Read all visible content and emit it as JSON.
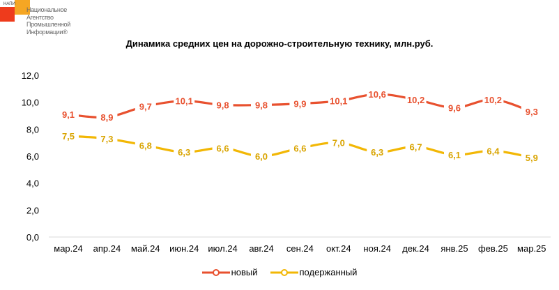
{
  "logo": {
    "small": "НАПИ",
    "lines": [
      "Национальное",
      "Агентство",
      "Промышленной",
      "Информации®"
    ]
  },
  "chart_data": {
    "type": "line",
    "title": "Динамика средних цен на дорожно-строительную технику, млн.руб.",
    "categories": [
      "мар.24",
      "апр.24",
      "май.24",
      "июн.24",
      "июл.24",
      "авг.24",
      "сен.24",
      "окт.24",
      "ноя.24",
      "дек.24",
      "янв.25",
      "фев.25",
      "мар.25"
    ],
    "series": [
      {
        "name": "новый",
        "color": "#E8512F",
        "label_color": "#E8512F",
        "values": [
          9.1,
          8.9,
          9.7,
          10.1,
          9.8,
          9.8,
          9.9,
          10.1,
          10.6,
          10.2,
          9.6,
          10.2,
          9.3
        ]
      },
      {
        "name": "подержанный",
        "color": "#F2B705",
        "label_color": "#D9A400",
        "values": [
          7.5,
          7.3,
          6.8,
          6.3,
          6.6,
          6.0,
          6.6,
          7.0,
          6.3,
          6.7,
          6.1,
          6.4,
          5.9
        ]
      }
    ],
    "y_ticks": [
      "0,0",
      "2,0",
      "4,0",
      "6,0",
      "8,0",
      "10,0",
      "12,0"
    ],
    "ylim": [
      0,
      12
    ],
    "grid": false,
    "legend_position": "bottom",
    "smooth": true
  }
}
